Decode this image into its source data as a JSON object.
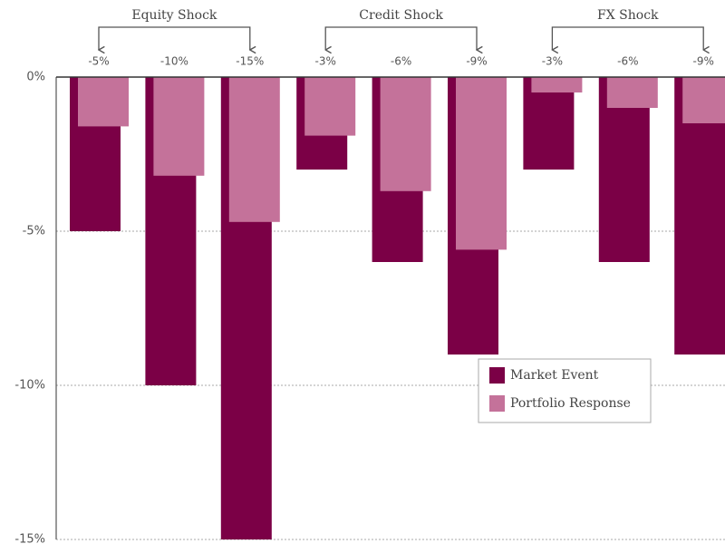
{
  "chart_data": {
    "type": "bar",
    "groups": [
      {
        "label": "Equity Shock",
        "categories": [
          "-5%",
          "-10%",
          "-15%"
        ]
      },
      {
        "label": "Credit Shock",
        "categories": [
          "-3%",
          "-6%",
          "-9%"
        ]
      },
      {
        "label": "FX Shock",
        "categories": [
          "-3%",
          "-6%",
          "-9%"
        ]
      }
    ],
    "series": [
      {
        "name": "Market Event",
        "color": "#7b0046",
        "values": [
          -5,
          -10,
          -15,
          -3,
          -6,
          -9,
          -3,
          -6,
          -9
        ]
      },
      {
        "name": "Portfolio Response",
        "color": "#c4729a",
        "values": [
          -1.6,
          -3.2,
          -4.7,
          -1.9,
          -3.7,
          -5.6,
          -0.5,
          -1.0,
          -1.5
        ]
      }
    ],
    "ylim": [
      -15,
      0
    ],
    "yticks": [
      {
        "value": 0,
        "label": "0%"
      },
      {
        "value": -5,
        "label": "-5%"
      },
      {
        "value": -10,
        "label": "-10%"
      },
      {
        "value": -15,
        "label": "-15%"
      }
    ],
    "grid": true
  }
}
